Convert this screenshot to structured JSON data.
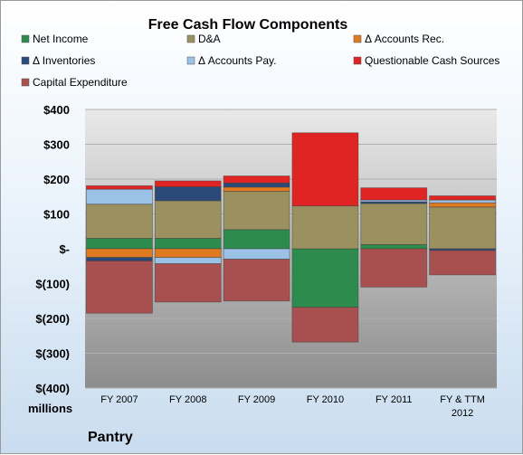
{
  "chart_data": {
    "type": "bar",
    "stacked": true,
    "title": "Free Cash Flow Components",
    "units_label": "millions",
    "company": "Pantry",
    "categories": [
      "FY 2007",
      "FY 2008",
      "FY 2009",
      "FY 2010",
      "FY 2011",
      "FY & TTM 2012"
    ],
    "ylim": [
      -400,
      400
    ],
    "yticks": [
      {
        "value": 400,
        "label": "$400"
      },
      {
        "value": 300,
        "label": "$300"
      },
      {
        "value": 200,
        "label": "$200"
      },
      {
        "value": 100,
        "label": "$100"
      },
      {
        "value": 0,
        "label": "$-"
      },
      {
        "value": -100,
        "label": "$(100)"
      },
      {
        "value": -200,
        "label": "$(200)"
      },
      {
        "value": -300,
        "label": "$(300)"
      },
      {
        "value": -400,
        "label": "$(400)"
      }
    ],
    "grid": true,
    "legend_position": "top",
    "series": [
      {
        "name": "Net Income",
        "color": "#2e8b4e",
        "values": [
          30,
          30,
          55,
          -168,
          12,
          0
        ]
      },
      {
        "name": "D&A",
        "color": "#9b9060",
        "values": [
          98,
          108,
          110,
          123,
          118,
          120
        ]
      },
      {
        "name": "Δ Accounts Rec.",
        "color": "#e07a20",
        "values": [
          -25,
          -25,
          12,
          0,
          0,
          12
        ]
      },
      {
        "name": "Δ Inventories",
        "color": "#2c4a78",
        "values": [
          -10,
          40,
          12,
          0,
          5,
          -5
        ]
      },
      {
        "name": "Δ Accounts Pay.",
        "color": "#9cc1e6",
        "values": [
          43,
          -18,
          -30,
          0,
          5,
          8
        ]
      },
      {
        "name": "Questionable Cash Sources",
        "color": "#e02424",
        "values": [
          10,
          17,
          20,
          210,
          35,
          12
        ]
      },
      {
        "name": "Capital Expenditure",
        "color": "#a8504f",
        "values": [
          -150,
          -110,
          -120,
          -100,
          -110,
          -70
        ]
      }
    ]
  }
}
